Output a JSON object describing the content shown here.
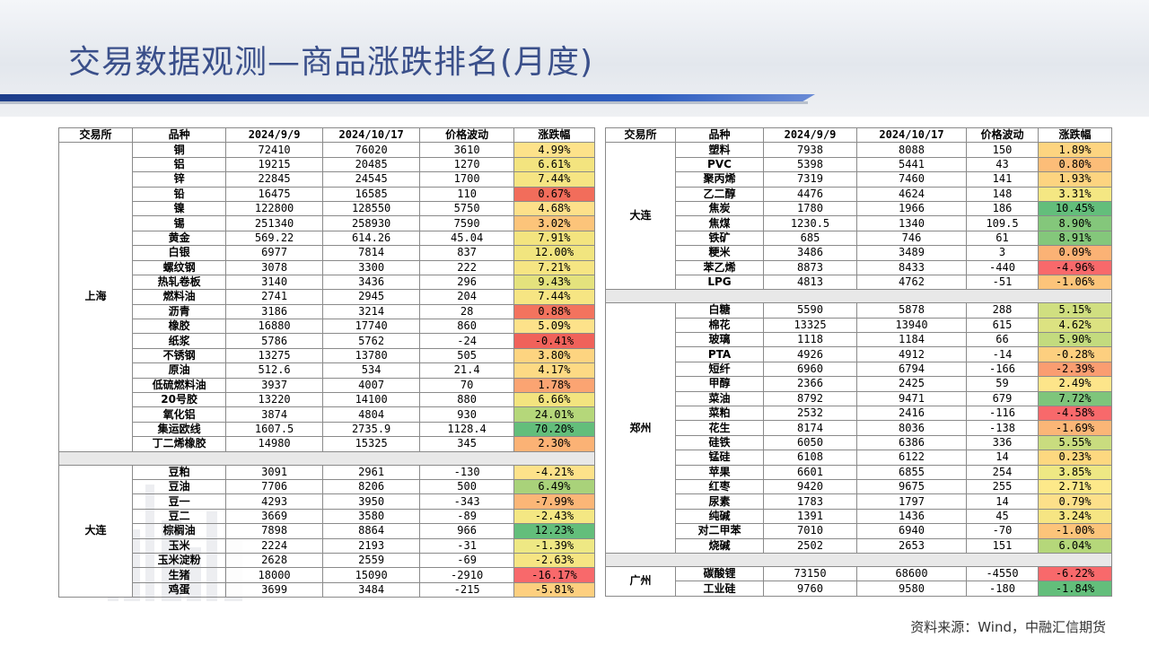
{
  "title": "交易数据观测—商品涨跌排名(月度)",
  "source_note": "资料来源：Wind，中融汇信期货",
  "headers": [
    "交易所",
    "品种",
    "2024/9/9",
    "2024/10/17",
    "价格波动",
    "涨跌幅"
  ],
  "left_groups": [
    {
      "exchange": "上海",
      "rows": [
        {
          "name": "铜",
          "p1": "72410",
          "p2": "76020",
          "chg": "3610",
          "pct": "4.99%",
          "color": "#fde28a"
        },
        {
          "name": "铝",
          "p1": "19215",
          "p2": "20485",
          "chg": "1270",
          "pct": "6.61%",
          "color": "#f3e47f"
        },
        {
          "name": "锌",
          "p1": "22845",
          "p2": "24545",
          "chg": "1700",
          "pct": "7.44%",
          "color": "#f6e583"
        },
        {
          "name": "铅",
          "p1": "16475",
          "p2": "16585",
          "chg": "110",
          "pct": "0.67%",
          "color": "#f26d5b"
        },
        {
          "name": "镍",
          "p1": "122800",
          "p2": "128550",
          "chg": "5750",
          "pct": "4.68%",
          "color": "#fde08a"
        },
        {
          "name": "锡",
          "p1": "251340",
          "p2": "258930",
          "chg": "7590",
          "pct": "3.02%",
          "color": "#fcc47a"
        },
        {
          "name": "黄金",
          "p1": "569.22",
          "p2": "614.26",
          "chg": "45.04",
          "pct": "7.91%",
          "color": "#f3e47f"
        },
        {
          "name": "白银",
          "p1": "6977",
          "p2": "7814",
          "chg": "837",
          "pct": "12.00%",
          "color": "#f1e57f"
        },
        {
          "name": "螺纹钢",
          "p1": "3078",
          "p2": "3300",
          "chg": "222",
          "pct": "7.21%",
          "color": "#f6e583"
        },
        {
          "name": "热轧卷板",
          "p1": "3140",
          "p2": "3436",
          "chg": "296",
          "pct": "9.43%",
          "color": "#e4e27d"
        },
        {
          "name": "燃料油",
          "p1": "2741",
          "p2": "2945",
          "chg": "204",
          "pct": "7.44%",
          "color": "#f6e583"
        },
        {
          "name": "沥青",
          "p1": "3186",
          "p2": "3214",
          "chg": "28",
          "pct": "0.88%",
          "color": "#f3735e"
        },
        {
          "name": "橡胶",
          "p1": "16880",
          "p2": "17740",
          "chg": "860",
          "pct": "5.09%",
          "color": "#fde28a"
        },
        {
          "name": "纸浆",
          "p1": "5786",
          "p2": "5762",
          "chg": "-24",
          "pct": "-0.41%",
          "color": "#f0625a"
        },
        {
          "name": "不锈钢",
          "p1": "13275",
          "p2": "13780",
          "chg": "505",
          "pct": "3.80%",
          "color": "#fdd480"
        },
        {
          "name": "原油",
          "p1": "512.6",
          "p2": "534",
          "chg": "21.4",
          "pct": "4.17%",
          "color": "#fdda84"
        },
        {
          "name": "低硫燃料油",
          "p1": "3937",
          "p2": "4007",
          "chg": "70",
          "pct": "1.78%",
          "color": "#fba472"
        },
        {
          "name": "20号胶",
          "p1": "13220",
          "p2": "14100",
          "chg": "880",
          "pct": "6.66%",
          "color": "#f3e47f"
        },
        {
          "name": "氧化铝",
          "p1": "3874",
          "p2": "4804",
          "chg": "930",
          "pct": "24.01%",
          "color": "#b5d77a"
        },
        {
          "name": "集运欧线",
          "p1": "1607.5",
          "p2": "2735.9",
          "chg": "1128.4",
          "pct": "70.20%",
          "color": "#63be7b"
        },
        {
          "name": "丁二烯橡胶",
          "p1": "14980",
          "p2": "15325",
          "chg": "345",
          "pct": "2.30%",
          "color": "#fbb275"
        }
      ]
    },
    {
      "exchange": "大连",
      "rows": [
        {
          "name": "豆粕",
          "p1": "3091",
          "p2": "2961",
          "chg": "-130",
          "pct": "-4.21%",
          "color": "#fde28a"
        },
        {
          "name": "豆油",
          "p1": "7706",
          "p2": "8206",
          "chg": "500",
          "pct": "6.49%",
          "color": "#a9d27a"
        },
        {
          "name": "豆一",
          "p1": "4293",
          "p2": "3950",
          "chg": "-343",
          "pct": "-7.99%",
          "color": "#fbb677"
        },
        {
          "name": "豆二",
          "p1": "3669",
          "p2": "3580",
          "chg": "-89",
          "pct": "-2.43%",
          "color": "#f4e783"
        },
        {
          "name": "棕榈油",
          "p1": "7898",
          "p2": "8864",
          "chg": "966",
          "pct": "12.23%",
          "color": "#63be7b"
        },
        {
          "name": "玉米",
          "p1": "2224",
          "p2": "2193",
          "chg": "-31",
          "pct": "-1.39%",
          "color": "#eee884"
        },
        {
          "name": "玉米淀粉",
          "p1": "2628",
          "p2": "2559",
          "chg": "-69",
          "pct": "-2.63%",
          "color": "#f6e583"
        },
        {
          "name": "生猪",
          "p1": "18000",
          "p2": "15090",
          "chg": "-2910",
          "pct": "-16.17%",
          "color": "#f8696b"
        },
        {
          "name": "鸡蛋",
          "p1": "3699",
          "p2": "3484",
          "chg": "-215",
          "pct": "-5.81%",
          "color": "#fdcf7f"
        }
      ]
    }
  ],
  "right_groups": [
    {
      "exchange": "大连",
      "rows": [
        {
          "name": "塑料",
          "p1": "7938",
          "p2": "8088",
          "chg": "150",
          "pct": "1.89%",
          "color": "#fdd480"
        },
        {
          "name": "PVC",
          "p1": "5398",
          "p2": "5441",
          "chg": "43",
          "pct": "0.80%",
          "color": "#fcbd78"
        },
        {
          "name": "聚丙烯",
          "p1": "7319",
          "p2": "7460",
          "chg": "141",
          "pct": "1.93%",
          "color": "#fdd480"
        },
        {
          "name": "乙二醇",
          "p1": "4476",
          "p2": "4624",
          "chg": "148",
          "pct": "3.31%",
          "color": "#f4e783"
        },
        {
          "name": "焦炭",
          "p1": "1780",
          "p2": "1966",
          "chg": "186",
          "pct": "10.45%",
          "color": "#63be7b"
        },
        {
          "name": "焦煤",
          "p1": "1230.5",
          "p2": "1340",
          "chg": "109.5",
          "pct": "8.90%",
          "color": "#84c77b"
        },
        {
          "name": "铁矿",
          "p1": "685",
          "p2": "746",
          "chg": "61",
          "pct": "8.91%",
          "color": "#84c77b"
        },
        {
          "name": "粳米",
          "p1": "3486",
          "p2": "3489",
          "chg": "3",
          "pct": "0.09%",
          "color": "#fbb275"
        },
        {
          "name": "苯乙烯",
          "p1": "8873",
          "p2": "8433",
          "chg": "-440",
          "pct": "-4.96%",
          "color": "#f8696b"
        },
        {
          "name": "LPG",
          "p1": "4813",
          "p2": "4762",
          "chg": "-51",
          "pct": "-1.06%",
          "color": "#fcc47a"
        }
      ]
    },
    {
      "exchange": "郑州",
      "rows": [
        {
          "name": "白糖",
          "p1": "5590",
          "p2": "5878",
          "chg": "288",
          "pct": "5.15%",
          "color": "#d0df80"
        },
        {
          "name": "棉花",
          "p1": "13325",
          "p2": "13940",
          "chg": "615",
          "pct": "4.62%",
          "color": "#dce281"
        },
        {
          "name": "玻璃",
          "p1": "1118",
          "p2": "1184",
          "chg": "66",
          "pct": "5.90%",
          "color": "#c3db7e"
        },
        {
          "name": "PTA",
          "p1": "4926",
          "p2": "4912",
          "chg": "-14",
          "pct": "-0.28%",
          "color": "#fdcf7f"
        },
        {
          "name": "短纤",
          "p1": "6960",
          "p2": "6794",
          "chg": "-166",
          "pct": "-2.39%",
          "color": "#fa9d71"
        },
        {
          "name": "甲醇",
          "p1": "2366",
          "p2": "2425",
          "chg": "59",
          "pct": "2.49%",
          "color": "#fde58a"
        },
        {
          "name": "菜油",
          "p1": "8792",
          "p2": "9471",
          "chg": "679",
          "pct": "7.72%",
          "color": "#7ec57b"
        },
        {
          "name": "菜粕",
          "p1": "2532",
          "p2": "2416",
          "chg": "-116",
          "pct": "-4.58%",
          "color": "#f8696b"
        },
        {
          "name": "花生",
          "p1": "8174",
          "p2": "8036",
          "chg": "-138",
          "pct": "-1.69%",
          "color": "#fbb677"
        },
        {
          "name": "硅铁",
          "p1": "6050",
          "p2": "6386",
          "chg": "336",
          "pct": "5.55%",
          "color": "#c9dc7f"
        },
        {
          "name": "锰硅",
          "p1": "6108",
          "p2": "6122",
          "chg": "14",
          "pct": "0.23%",
          "color": "#fdd880"
        },
        {
          "name": "苹果",
          "p1": "6601",
          "p2": "6855",
          "chg": "254",
          "pct": "3.85%",
          "color": "#eee884"
        },
        {
          "name": "红枣",
          "p1": "9420",
          "p2": "9675",
          "chg": "255",
          "pct": "2.71%",
          "color": "#fde98a"
        },
        {
          "name": "尿素",
          "p1": "1783",
          "p2": "1797",
          "chg": "14",
          "pct": "0.79%",
          "color": "#fde08a"
        },
        {
          "name": "纯碱",
          "p1": "1391",
          "p2": "1436",
          "chg": "45",
          "pct": "3.24%",
          "color": "#f6e583"
        },
        {
          "name": "对二甲苯",
          "p1": "7010",
          "p2": "6940",
          "chg": "-70",
          "pct": "-1.00%",
          "color": "#fcc47a"
        },
        {
          "name": "烧碱",
          "p1": "2502",
          "p2": "2653",
          "chg": "151",
          "pct": "6.04%",
          "color": "#b5d77a"
        }
      ]
    },
    {
      "exchange": "广州",
      "rows": [
        {
          "name": "碳酸锂",
          "p1": "73150",
          "p2": "68600",
          "chg": "-4550",
          "pct": "-6.22%",
          "color": "#f8696b"
        },
        {
          "name": "工业硅",
          "p1": "9760",
          "p2": "9580",
          "chg": "-180",
          "pct": "-1.84%",
          "color": "#63be7b"
        }
      ]
    }
  ]
}
